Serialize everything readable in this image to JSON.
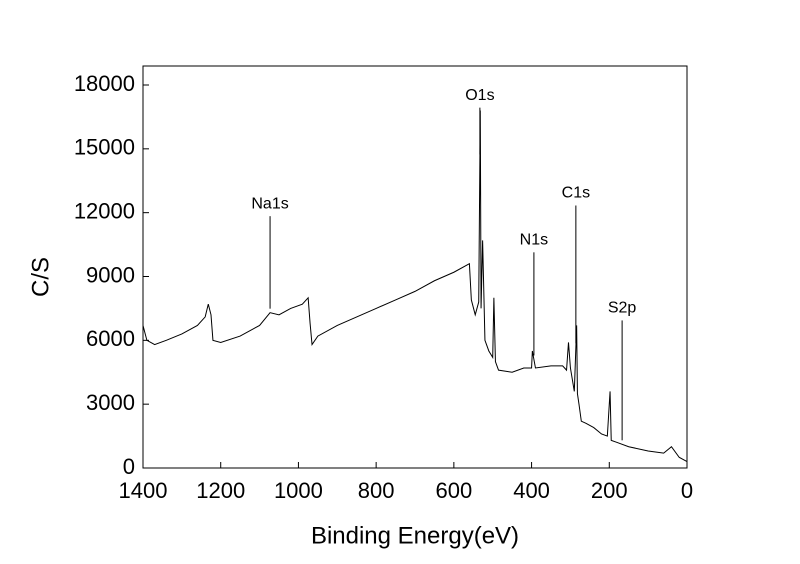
{
  "chart_data": {
    "type": "line",
    "x_label": "Binding Energy(eV)",
    "y_label": "C/S",
    "xlim": [
      1400,
      0
    ],
    "ylim": [
      0,
      18000
    ],
    "xticks": [
      1400,
      1200,
      1000,
      800,
      600,
      400,
      200,
      0
    ],
    "yticks": [
      0,
      3000,
      6000,
      9000,
      12000,
      15000,
      18000
    ],
    "series": [
      {
        "color": "#000000",
        "x": [
          1400,
          1390,
          1370,
          1340,
          1300,
          1260,
          1240,
          1232,
          1225,
          1220,
          1200,
          1150,
          1100,
          1073,
          1050,
          1020,
          990,
          975,
          970,
          965,
          950,
          900,
          850,
          800,
          750,
          700,
          650,
          600,
          560,
          555,
          545,
          536,
          532,
          530,
          526,
          520,
          510,
          500,
          497,
          493,
          485,
          450,
          420,
          400,
          398,
          390,
          350,
          320,
          310,
          305,
          300,
          290,
          284,
          282,
          278,
          272,
          260,
          240,
          220,
          205,
          198,
          195,
          180,
          150,
          100,
          60,
          40,
          20,
          0
        ],
        "values": [
          6700,
          6000,
          5800,
          6000,
          6300,
          6700,
          7100,
          7700,
          7200,
          6000,
          5900,
          6200,
          6700,
          7300,
          7200,
          7500,
          7700,
          8000,
          6800,
          5800,
          6200,
          6700,
          7100,
          7500,
          7900,
          8300,
          8800,
          9200,
          9600,
          7900,
          7200,
          7800,
          16800,
          7500,
          10700,
          6000,
          5500,
          5200,
          8000,
          5000,
          4600,
          4500,
          4700,
          4700,
          5500,
          4700,
          4800,
          4800,
          4600,
          5900,
          4700,
          3600,
          6700,
          3500,
          3000,
          2200,
          2100,
          1900,
          1600,
          1500,
          3600,
          1300,
          1200,
          1000,
          800,
          700,
          1000,
          500,
          300
        ]
      }
    ],
    "annotations": [
      {
        "text": "Na1s",
        "x": 1073,
        "y": 12400
      },
      {
        "text": "O1s",
        "x": 533,
        "y": 17500
      },
      {
        "text": "N1s",
        "x": 394,
        "y": 10700
      },
      {
        "text": "C1s",
        "x": 286,
        "y": 12900
      },
      {
        "text": "S2p",
        "x": 167,
        "y": 7500
      }
    ]
  }
}
